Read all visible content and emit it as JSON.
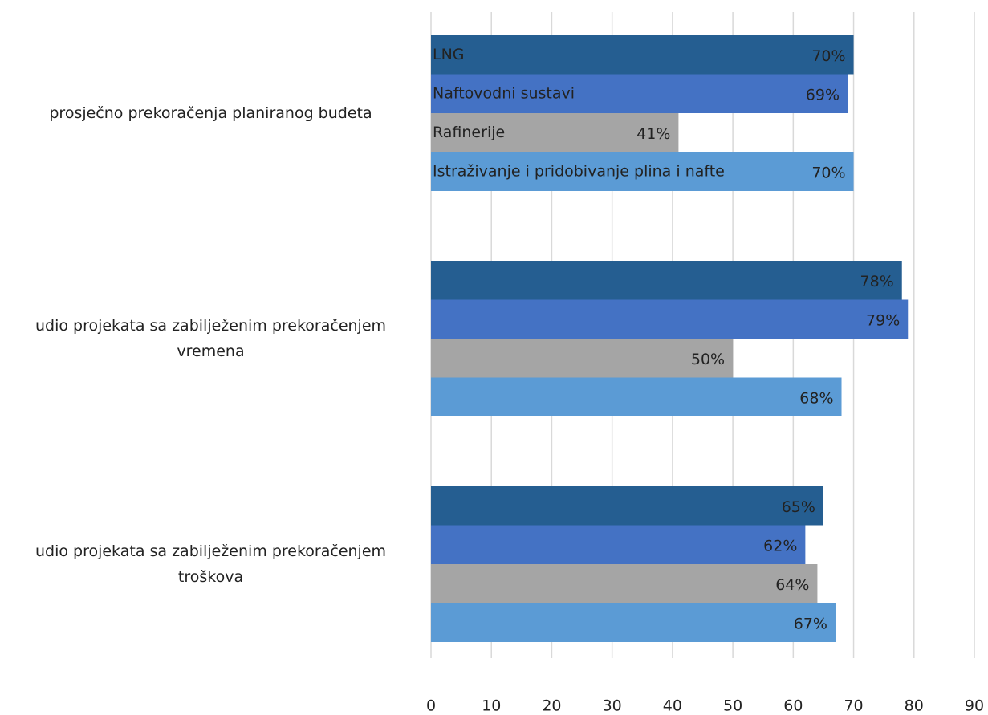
{
  "chart_data": {
    "type": "bar",
    "orientation": "horizontal",
    "categories": [
      "prosječno prekoračenja planiranog buđeta",
      "udio projekata sa zabilježenim prekoračenjem vremena",
      "udio projekata sa zabilježenim prekoračenjem troškova"
    ],
    "series": [
      {
        "name": "LNG",
        "color": "#255e91",
        "values": [
          70,
          78,
          65
        ],
        "value_labels": [
          "70%",
          "78%",
          "65%"
        ]
      },
      {
        "name": "Naftovodni sustavi",
        "color": "#4472c4",
        "values": [
          69,
          79,
          62
        ],
        "value_labels": [
          "69%",
          "79%",
          "62%"
        ]
      },
      {
        "name": "Rafinerije",
        "color": "#a5a5a5",
        "values": [
          41,
          50,
          64
        ],
        "value_labels": [
          "41%",
          "50%",
          "64%"
        ]
      },
      {
        "name": "Istraživanje i pridobivanje plina i nafte",
        "color": "#5b9bd5",
        "values": [
          70,
          68,
          67
        ],
        "value_labels": [
          "70%",
          "68%",
          "67%"
        ]
      }
    ],
    "xlim": [
      0,
      90
    ],
    "xticks": [
      0,
      10,
      20,
      30,
      40,
      50,
      60,
      70,
      80,
      90
    ],
    "grid": true
  }
}
